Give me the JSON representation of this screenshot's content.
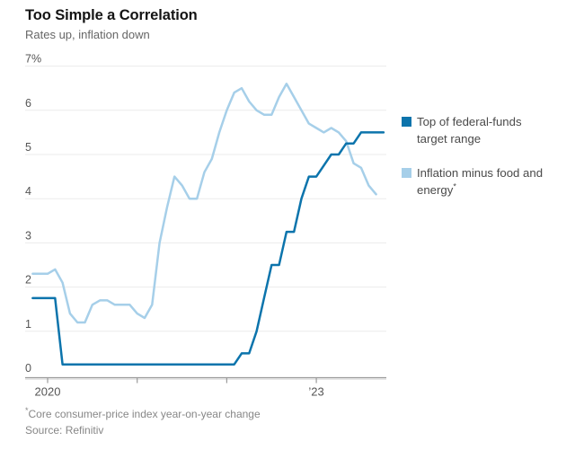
{
  "header": {
    "title": "Too Simple a Correlation",
    "subtitle": "Rates up, inflation down"
  },
  "legend": {
    "items": [
      {
        "key": "fed-funds",
        "label": "Top of federal-funds target range",
        "marker": ""
      },
      {
        "key": "inflation",
        "label": "Inflation minus food and energy",
        "marker": "*"
      }
    ]
  },
  "footnotes": {
    "note_marker": "*",
    "note": "Core consumer-price index year-on-year change",
    "source": "Source: Refinitiv"
  },
  "chart_data": {
    "type": "line",
    "title": "Too Simple a Correlation",
    "subtitle": "Rates up, inflation down",
    "y_unit": "%",
    "ylim": [
      0,
      7
    ],
    "y_ticks": [
      0,
      1,
      2,
      3,
      4,
      5,
      6,
      7
    ],
    "y_tick_labels": [
      "0",
      "1",
      "2",
      "3",
      "4",
      "5",
      "6",
      "7%"
    ],
    "x_ticks": [
      2020,
      2021,
      2022,
      2023
    ],
    "x_tick_labels": [
      "2020",
      "",
      "",
      "’23"
    ],
    "xlim_years": [
      2019.78,
      2023.85
    ],
    "grid": true,
    "legend_position": "right",
    "series": [
      {
        "key": "fed-funds",
        "name": "Top of federal-funds target range",
        "color": "#0c74ac",
        "start_year": 2019,
        "start_month": 11,
        "frequency": "monthly",
        "values": [
          1.75,
          1.75,
          1.75,
          1.75,
          0.25,
          0.25,
          0.25,
          0.25,
          0.25,
          0.25,
          0.25,
          0.25,
          0.25,
          0.25,
          0.25,
          0.25,
          0.25,
          0.25,
          0.25,
          0.25,
          0.25,
          0.25,
          0.25,
          0.25,
          0.25,
          0.25,
          0.25,
          0.25,
          0.5,
          0.5,
          1.0,
          1.75,
          2.5,
          2.5,
          3.25,
          3.25,
          4.0,
          4.5,
          4.5,
          4.75,
          5.0,
          5.0,
          5.25,
          5.25,
          5.5,
          5.5,
          5.5,
          5.5
        ]
      },
      {
        "key": "inflation",
        "name": "Inflation minus food and energy",
        "color": "#a6cfe9",
        "start_year": 2019,
        "start_month": 11,
        "frequency": "monthly",
        "values": [
          2.3,
          2.3,
          2.3,
          2.4,
          2.1,
          1.4,
          1.2,
          1.2,
          1.6,
          1.7,
          1.7,
          1.6,
          1.6,
          1.6,
          1.4,
          1.3,
          1.6,
          3.0,
          3.8,
          4.5,
          4.3,
          4.0,
          4.0,
          4.6,
          4.9,
          5.5,
          6.0,
          6.4,
          6.5,
          6.2,
          6.0,
          5.9,
          5.9,
          6.3,
          6.6,
          6.3,
          6.0,
          5.7,
          5.6,
          5.5,
          5.6,
          5.5,
          5.3,
          4.8,
          4.7,
          4.3,
          4.1
        ]
      }
    ]
  }
}
